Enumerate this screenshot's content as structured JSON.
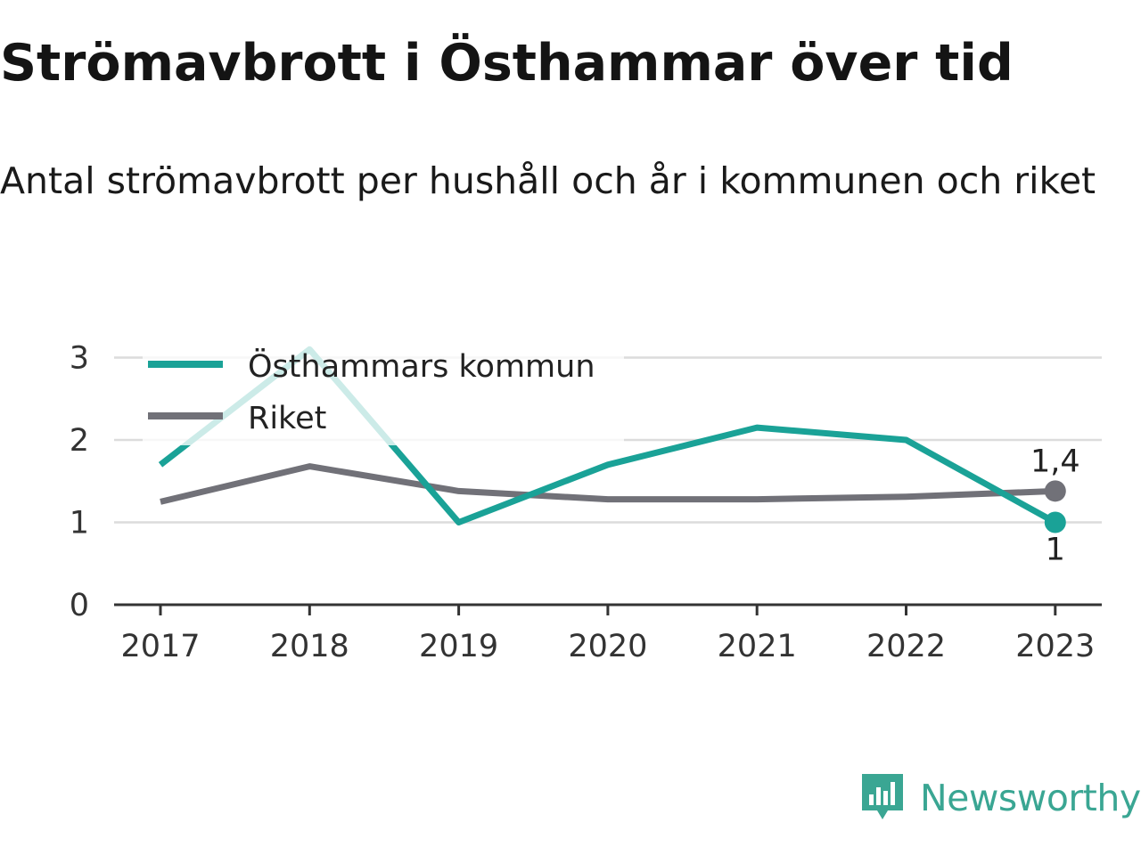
{
  "title": "Strömavbrott i Östhammar över tid",
  "subtitle": "Antal strömavbrott per hushåll och år i kommunen och riket",
  "brand": "Newsworthy",
  "colors": {
    "kommun": "#1aa297",
    "riket": "#717178",
    "grid": "#dcdcdc",
    "axis": "#333333",
    "brand": "#3aa693"
  },
  "chart_data": {
    "type": "line",
    "x": [
      "2017",
      "2018",
      "2019",
      "2020",
      "2021",
      "2022",
      "2023"
    ],
    "yticks": [
      "0",
      "1",
      "2",
      "3"
    ],
    "ylim": [
      0,
      3
    ],
    "grid": true,
    "legend_position": "top-left",
    "series": [
      {
        "name": "Östhammars kommun",
        "color": "#1aa297",
        "values": [
          1.7,
          3.1,
          1.0,
          1.7,
          2.15,
          2.0,
          1.0
        ],
        "end_label": "1"
      },
      {
        "name": "Riket",
        "color": "#717178",
        "values": [
          1.25,
          1.68,
          1.38,
          1.28,
          1.28,
          1.31,
          1.38
        ],
        "end_label": "1,4"
      }
    ]
  }
}
